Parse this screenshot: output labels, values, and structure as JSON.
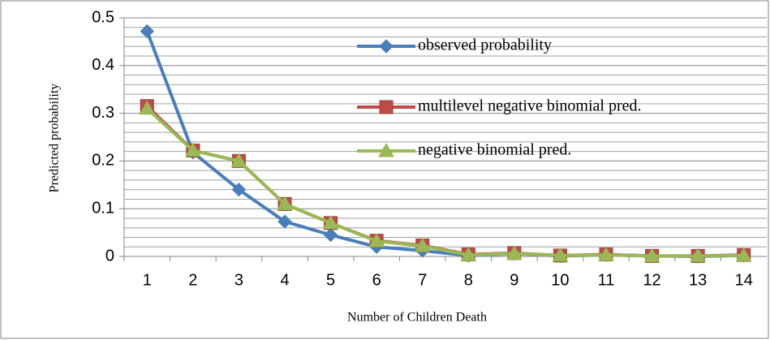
{
  "chart_data": {
    "type": "line",
    "x_label": "Number of Children Death",
    "y_label": "Predicted probability",
    "categories": [
      "1",
      "2",
      "3",
      "4",
      "5",
      "6",
      "7",
      "8",
      "9",
      "10",
      "11",
      "12",
      "13",
      "14"
    ],
    "series": [
      {
        "name": "observed probability",
        "color": "#4a7ebb",
        "marker": "diamond",
        "values": [
          0.472,
          0.218,
          0.14,
          0.073,
          0.045,
          0.02,
          0.012,
          0.002,
          0.006,
          0.001,
          0.003,
          0.001,
          0.0,
          0.002
        ]
      },
      {
        "name": "multilevel negative binomial pred.",
        "color": "#be4b48",
        "marker": "square",
        "values": [
          0.315,
          0.222,
          0.2,
          0.11,
          0.07,
          0.033,
          0.023,
          0.004,
          0.007,
          0.002,
          0.004,
          0.001,
          0.001,
          0.003
        ]
      },
      {
        "name": "negative binomial pred.",
        "color": "#98b954",
        "marker": "triangle",
        "values": [
          0.31,
          0.222,
          0.2,
          0.11,
          0.07,
          0.032,
          0.022,
          0.003,
          0.006,
          0.002,
          0.003,
          0.001,
          0.001,
          0.002
        ]
      }
    ],
    "ylim": [
      0,
      0.5
    ],
    "yticks": [
      0,
      0.1,
      0.2,
      0.3,
      0.4,
      0.5
    ],
    "yminorticks": [
      0.02,
      0.04,
      0.06,
      0.08,
      0.12,
      0.14,
      0.16,
      0.18,
      0.22,
      0.24,
      0.26,
      0.28,
      0.32,
      0.34,
      0.36,
      0.38,
      0.42,
      0.44,
      0.46,
      0.48
    ],
    "grid": true,
    "legend": "inside-top"
  }
}
